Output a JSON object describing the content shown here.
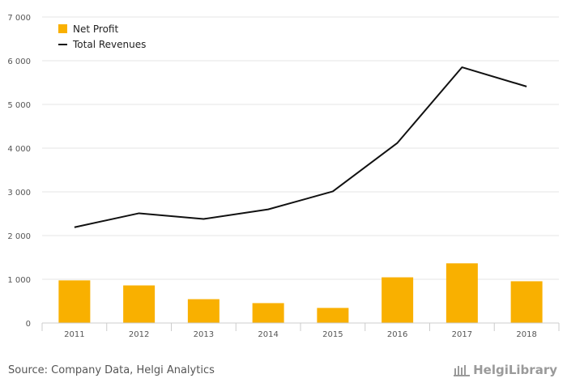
{
  "chart_data": {
    "type": "bar",
    "categories": [
      "2011",
      "2012",
      "2013",
      "2014",
      "2015",
      "2016",
      "2017",
      "2018"
    ],
    "series": [
      {
        "name": "Net Profit",
        "type": "bar",
        "color": "#f9b000",
        "values": [
          975,
          860,
          545,
          455,
          345,
          1045,
          1365,
          955
        ]
      },
      {
        "name": "Total Revenues",
        "type": "line",
        "color": "#111111",
        "values": [
          2190,
          2510,
          2380,
          2600,
          3010,
          4120,
          5850,
          5410
        ]
      }
    ],
    "yticks": [
      "0",
      "1 000",
      "2 000",
      "3 000",
      "4 000",
      "5 000",
      "6 000",
      "7 000"
    ],
    "ylim": [
      0,
      7000
    ],
    "grid": true,
    "legend": "top-left"
  },
  "footer": {
    "source": "Source: Company Data, Helgi Analytics",
    "brand": "HelgiLibrary"
  }
}
